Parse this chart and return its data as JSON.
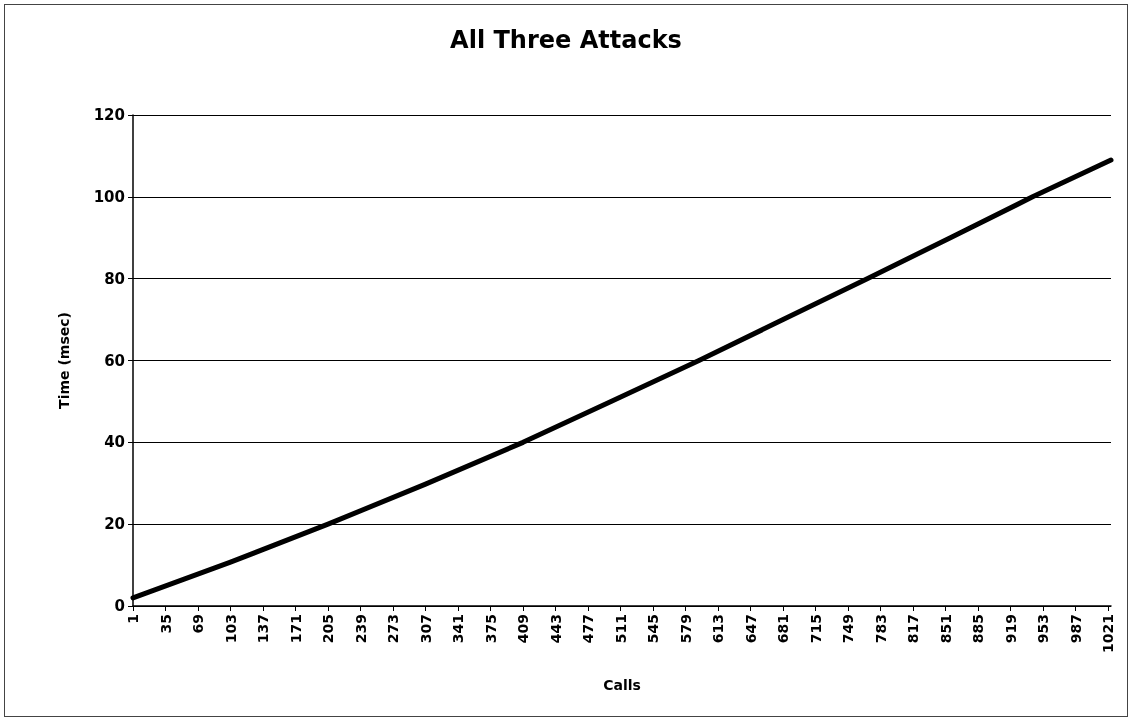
{
  "chart_data": {
    "type": "line",
    "title": "All Three Attacks",
    "xlabel": "Calls",
    "ylabel": "Time (msec)",
    "x": [
      1,
      103,
      205,
      307,
      409,
      501,
      593,
      681,
      769,
      856,
      942,
      1024
    ],
    "series": [
      {
        "color": "#000000",
        "values": [
          2,
          10.7,
          20,
          29.8,
          40,
          50,
          60,
          70,
          80,
          90,
          100,
          109
        ]
      }
    ],
    "xlim": [
      1,
      1024
    ],
    "xticks": [
      1,
      35,
      69,
      103,
      137,
      171,
      205,
      239,
      273,
      307,
      341,
      375,
      409,
      443,
      477,
      511,
      545,
      579,
      613,
      647,
      681,
      715,
      749,
      783,
      817,
      851,
      885,
      919,
      953,
      987,
      1021
    ],
    "ylim": [
      0,
      120
    ],
    "yticks": [
      0,
      20,
      40,
      60,
      80,
      100,
      120
    ],
    "grid": "y",
    "marker": "none",
    "line_style": "solid"
  }
}
